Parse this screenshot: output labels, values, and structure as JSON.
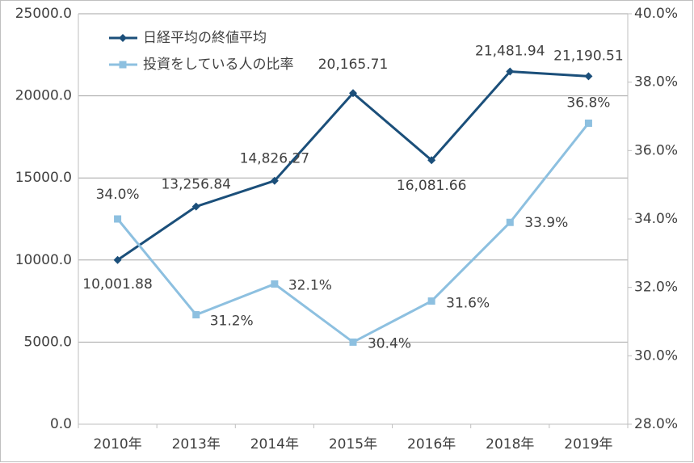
{
  "chart_data": {
    "type": "line",
    "categories": [
      "2010年",
      "2013年",
      "2014年",
      "2015年",
      "2016年",
      "2018年",
      "2019年"
    ],
    "series": [
      {
        "name": "日経平均の終値平均",
        "color": "#1b4f7a",
        "marker": "diamond",
        "values": [
          10001.88,
          13256.84,
          14826.27,
          20165.71,
          16081.66,
          21481.94,
          21190.51
        ],
        "value_labels": [
          "10,001.88",
          "13,256.84",
          "14,826.27",
          "20,165.71",
          "16,081.66",
          "21,481.94",
          "21,190.51"
        ]
      },
      {
        "name": "投資をしている人の比率",
        "color": "#8dc0e0",
        "marker": "square",
        "axis": "y2",
        "values": [
          34.0,
          31.2,
          32.1,
          30.4,
          31.6,
          33.9,
          36.8
        ],
        "value_labels": [
          "34.0%",
          "31.2%",
          "32.1%",
          "30.4%",
          "31.6%",
          "33.9%",
          "36.8%"
        ]
      }
    ],
    "ylim": [
      0,
      25000
    ],
    "yticks": [
      {
        "value": 0,
        "label": "0.0"
      },
      {
        "value": 5000,
        "label": "5000.0"
      },
      {
        "value": 10000,
        "label": "10000.0"
      },
      {
        "value": 15000,
        "label": "15000.0"
      },
      {
        "value": 20000,
        "label": "20000.0"
      },
      {
        "value": 25000,
        "label": "25000.0"
      }
    ],
    "y2lim": [
      28,
      40
    ],
    "y2ticks": [
      {
        "value": 28,
        "label": "28.0%"
      },
      {
        "value": 30,
        "label": "30.0%"
      },
      {
        "value": 32,
        "label": "32.0%"
      },
      {
        "value": 34,
        "label": "34.0%"
      },
      {
        "value": 36,
        "label": "36.0%"
      },
      {
        "value": 38,
        "label": "38.0%"
      },
      {
        "value": 40,
        "label": "40.0%"
      }
    ],
    "grid": true,
    "legend": "top-left"
  }
}
